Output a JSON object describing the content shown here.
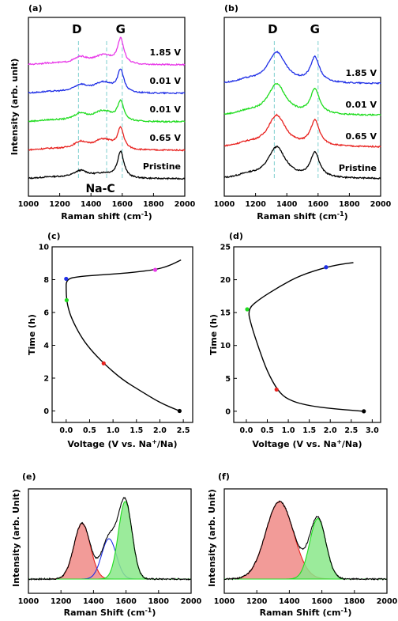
{
  "colors": {
    "black": "#000000",
    "red": "#e8221f",
    "green": "#1fdc1f",
    "blue": "#1f2fe6",
    "magenta": "#e838e8",
    "dashed": "#7fcfcf",
    "fit_red": "#f08a86",
    "fit_green": "#8ae88a"
  },
  "chart_data": [
    {
      "id": "a",
      "panel_label": "(a)",
      "type": "line",
      "xlabel": "Raman shift (cm",
      "xlabel_sup": "-1",
      "xlabel_end": ")",
      "ylabel": "Intensity (arb. unit)",
      "xlim": [
        1000,
        2000
      ],
      "x_ticks": [
        "1000",
        "1200",
        "1400",
        "1600",
        "1800",
        "2000"
      ],
      "peak_labels": [
        "D",
        "G"
      ],
      "peak_positions": [
        1340,
        1590
      ],
      "dashed_lines": [
        1320,
        1500,
        1600
      ],
      "annotation": "Na-C",
      "annotation_x": 1460,
      "curve_params": {
        "D_height": 0.6,
        "G_height": 1.0,
        "D_width": 55,
        "G_width": 30,
        "NaC_height": 0.35
      },
      "series": [
        {
          "label": "Pristine",
          "color": "black",
          "offset": 0,
          "dg": 0.55,
          "g": 1.0,
          "nac": 0.15
        },
        {
          "label": "0.65 V",
          "color": "red",
          "offset": 1,
          "dg": 0.6,
          "g": 0.8,
          "nac": 0.35
        },
        {
          "label": "0.01 V",
          "color": "green",
          "offset": 2,
          "dg": 0.6,
          "g": 0.75,
          "nac": 0.35
        },
        {
          "label": "0.01 V",
          "color": "blue",
          "offset": 3,
          "dg": 0.6,
          "g": 0.85,
          "nac": 0.35
        },
        {
          "label": "1.85 V",
          "color": "magenta",
          "offset": 4,
          "dg": 0.55,
          "g": 0.95,
          "nac": 0.3
        }
      ]
    },
    {
      "id": "b",
      "panel_label": "(b)",
      "type": "line",
      "xlabel": "Raman shift (cm",
      "xlabel_sup": "-1",
      "xlabel_end": ")",
      "xlim": [
        1000,
        2000
      ],
      "x_ticks": [
        "1000",
        "1200",
        "1400",
        "1600",
        "1800",
        "2000"
      ],
      "peak_labels": [
        "D",
        "G"
      ],
      "peak_positions": [
        1340,
        1580
      ],
      "dashed_lines": [
        1320,
        1600
      ],
      "series": [
        {
          "label": "Pristine",
          "color": "black",
          "offset": 0
        },
        {
          "label": "0.65 V",
          "color": "red",
          "offset": 1
        },
        {
          "label": "0.01 V",
          "color": "green",
          "offset": 2
        },
        {
          "label": "1.85 V",
          "color": "blue",
          "offset": 3
        }
      ]
    },
    {
      "id": "c",
      "panel_label": "(c)",
      "type": "line",
      "xlabel": "Voltage (V vs. Na",
      "xlabel_sup": "+",
      "xlabel_end": "/Na)",
      "ylabel": "Time (h)",
      "xlim": [
        -0.3,
        2.7
      ],
      "ylim": [
        -0.7,
        10
      ],
      "x_ticks": [
        "0.0",
        "0.5",
        "1.0",
        "1.5",
        "2.0",
        "2.5"
      ],
      "x_tick_values": [
        0,
        0.5,
        1,
        1.5,
        2,
        2.5
      ],
      "y_ticks": [
        "0",
        "2",
        "4",
        "6",
        "8",
        "10"
      ],
      "y_tick_values": [
        0,
        2,
        4,
        6,
        8,
        10
      ],
      "curve": [
        [
          2.42,
          0
        ],
        [
          2.0,
          0.5
        ],
        [
          1.6,
          1.2
        ],
        [
          1.2,
          1.9
        ],
        [
          0.8,
          2.9
        ],
        [
          0.5,
          3.8
        ],
        [
          0.3,
          4.6
        ],
        [
          0.12,
          5.6
        ],
        [
          0.04,
          6.3
        ],
        [
          0.01,
          6.8
        ],
        [
          0.0,
          7.3
        ],
        [
          0.0,
          8.05
        ],
        [
          0.3,
          8.2
        ],
        [
          0.8,
          8.3
        ],
        [
          1.3,
          8.4
        ],
        [
          1.9,
          8.6
        ],
        [
          2.2,
          8.85
        ],
        [
          2.45,
          9.2
        ]
      ],
      "markers": [
        {
          "x": 2.42,
          "y": 0,
          "color": "black"
        },
        {
          "x": 0.8,
          "y": 2.9,
          "color": "red"
        },
        {
          "x": 0.01,
          "y": 6.75,
          "color": "green"
        },
        {
          "x": 0.0,
          "y": 8.05,
          "color": "blue"
        },
        {
          "x": 1.9,
          "y": 8.6,
          "color": "magenta"
        }
      ]
    },
    {
      "id": "d",
      "panel_label": "(d)",
      "type": "line",
      "xlabel": "Voltage (V vs. Na",
      "xlabel_sup": "+",
      "xlabel_end": "/Na)",
      "xlim": [
        -0.3,
        3.2
      ],
      "ylim": [
        -1.7,
        25
      ],
      "x_ticks": [
        "0.0",
        "0.5",
        "1.0",
        "1.5",
        "2.0",
        "2.5",
        "3.0"
      ],
      "x_tick_values": [
        0,
        0.5,
        1,
        1.5,
        2,
        2.5,
        3
      ],
      "y_ticks": [
        "0",
        "5",
        "10",
        "15",
        "20",
        "25"
      ],
      "y_tick_values": [
        0,
        5,
        10,
        15,
        20,
        25
      ],
      "curve": [
        [
          2.8,
          0
        ],
        [
          2.2,
          0.3
        ],
        [
          1.5,
          0.8
        ],
        [
          1.0,
          1.7
        ],
        [
          0.75,
          3.1
        ],
        [
          0.5,
          6
        ],
        [
          0.3,
          9.5
        ],
        [
          0.12,
          13
        ],
        [
          0.03,
          15.5
        ],
        [
          0.3,
          17
        ],
        [
          0.8,
          19
        ],
        [
          1.3,
          20.7
        ],
        [
          1.9,
          21.9
        ],
        [
          2.3,
          22.4
        ],
        [
          2.55,
          22.6
        ]
      ],
      "markers": [
        {
          "x": 2.8,
          "y": 0,
          "color": "black"
        },
        {
          "x": 0.72,
          "y": 3.3,
          "color": "red"
        },
        {
          "x": 0.02,
          "y": 15.5,
          "color": "green"
        },
        {
          "x": 1.9,
          "y": 21.9,
          "color": "blue"
        }
      ]
    },
    {
      "id": "e",
      "panel_label": "(e)",
      "type": "area",
      "xlabel": "Raman Shift (cm",
      "xlabel_sup": "-1",
      "xlabel_end": ")",
      "ylabel": "Intensity (arb. Unit)",
      "xlim": [
        1000,
        2000
      ],
      "x_ticks": [
        "1000",
        "1200",
        "1400",
        "1600",
        "1800",
        "2000"
      ],
      "components": [
        {
          "center": 1330,
          "height": 0.72,
          "width": 50,
          "color": "fit_red",
          "edge": "red"
        },
        {
          "center": 1495,
          "height": 0.52,
          "width": 45,
          "color": "none",
          "edge": "blue"
        },
        {
          "center": 1595,
          "height": 1.0,
          "width": 42,
          "color": "fit_green",
          "edge": "green"
        }
      ]
    },
    {
      "id": "f",
      "panel_label": "(f)",
      "type": "area",
      "xlabel": "Raman Shift (cm",
      "xlabel_sup": "-1",
      "xlabel_end": ")",
      "ylabel": "Intensity (arb. Unit)",
      "xlim": [
        1000,
        2000
      ],
      "x_ticks": [
        "1000",
        "1200",
        "1400",
        "1600",
        "1800",
        "2000"
      ],
      "components": [
        {
          "center": 1340,
          "height": 1.0,
          "width": 85,
          "color": "fit_red",
          "edge": "red"
        },
        {
          "center": 1575,
          "height": 0.78,
          "width": 50,
          "color": "fit_green",
          "edge": "green"
        }
      ]
    }
  ]
}
